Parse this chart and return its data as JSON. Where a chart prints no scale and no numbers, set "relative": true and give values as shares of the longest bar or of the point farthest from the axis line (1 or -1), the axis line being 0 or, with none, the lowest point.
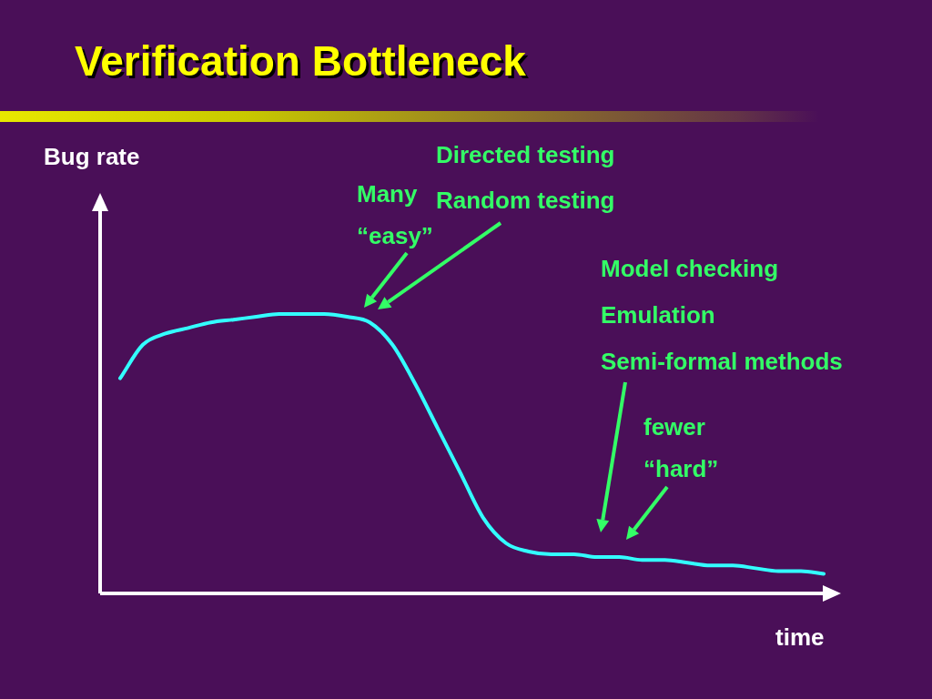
{
  "chart_data": {
    "type": "line",
    "title": "Verification Bottleneck",
    "xlabel": "time",
    "relative": true,
    "line_style": "solid",
    "categories": [
      null,
      null,
      null,
      null,
      null,
      null,
      null,
      null,
      null,
      null,
      null,
      null,
      null,
      null,
      null,
      null,
      null,
      null,
      null,
      null,
      null,
      null,
      null,
      null,
      null,
      null,
      null,
      null,
      null,
      null,
      null,
      null
    ],
    "series": [
      {
        "color": "#33ffff",
        "values": [
          0.77,
          0.89,
          0.93,
          0.95,
          0.97,
          0.98,
          0.99,
          1.0,
          1.0,
          1.0,
          0.99,
          0.97,
          0.89,
          0.75,
          0.59,
          0.43,
          0.27,
          0.18,
          0.15,
          0.14,
          0.14,
          0.13,
          0.13,
          0.12,
          0.12,
          0.11,
          0.1,
          0.1,
          0.09,
          0.08,
          0.08,
          0.07
        ]
      }
    ],
    "annotations": [
      "Directed testing",
      "Random testing",
      "Many “easy”",
      "Model checking",
      "Emulation",
      "Semi-formal methods",
      "fewer “hard”",
      "Bug rate"
    ]
  }
}
